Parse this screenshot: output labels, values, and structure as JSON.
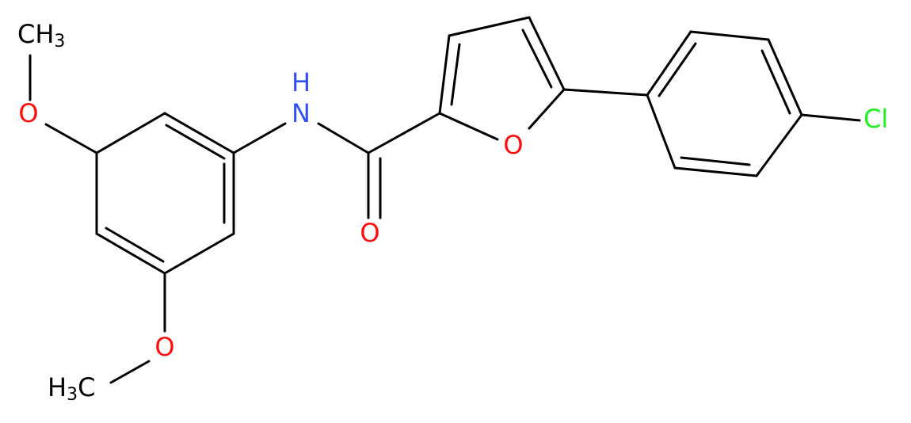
{
  "atoms": [
    {
      "text": "CH",
      "sub": "3"
    },
    {
      "text": "O"
    },
    {
      "text": "N"
    },
    {
      "text": "H"
    },
    {
      "text": "O"
    },
    {
      "text": "O"
    },
    {
      "text": "Cl"
    },
    {
      "text": "O"
    },
    {
      "text": "H",
      "sub": "3",
      "text2": "C"
    }
  ]
}
